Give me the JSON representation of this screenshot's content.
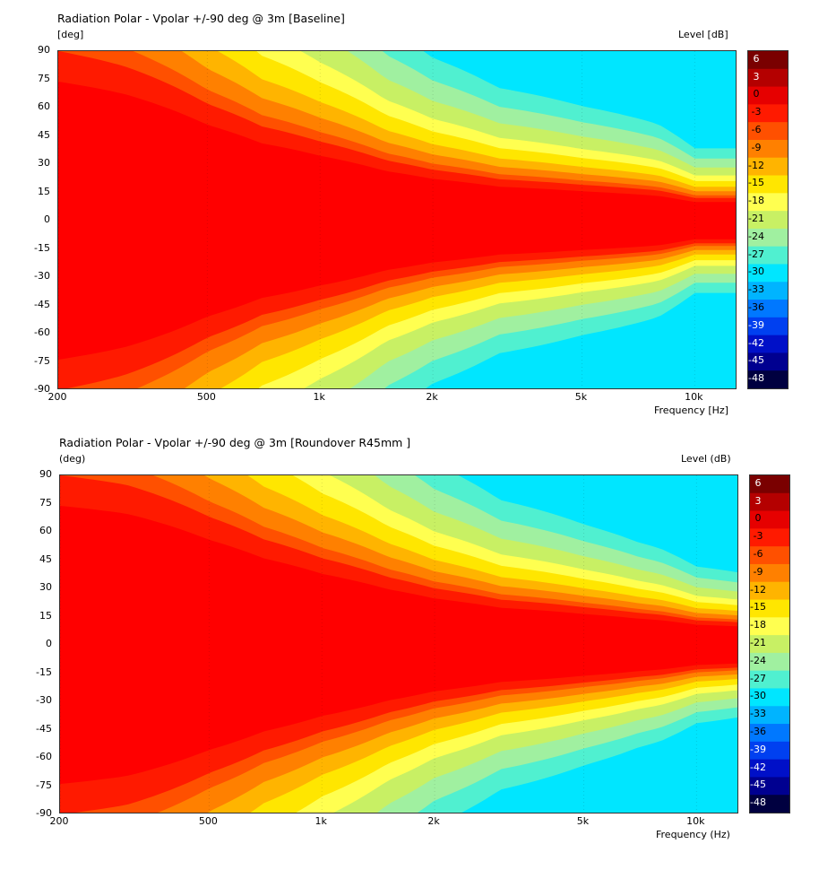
{
  "chart_data": [
    {
      "type": "heatmap",
      "title": "Radiation Polar - Vpolar +/-90 deg @ 3m [Baseline]",
      "ylabel": "[deg]",
      "xlabel": "Frequency  [Hz]",
      "colorbar_label": "Level  [dB]",
      "x_scale": "log",
      "xlim": [
        200,
        13000
      ],
      "ylim": [
        -90,
        90
      ],
      "x_ticks": [
        200,
        500,
        1000,
        2000,
        5000,
        10000
      ],
      "x_tick_labels": [
        "200",
        "500",
        "1k",
        "2k",
        "5k",
        "10k"
      ],
      "y_ticks": [
        90,
        75,
        60,
        45,
        30,
        15,
        0,
        -15,
        -30,
        -45,
        -60,
        -75,
        -90
      ],
      "colorbar_levels": [
        6,
        3,
        0,
        -3,
        -6,
        -9,
        -12,
        -15,
        -18,
        -21,
        -24,
        -27,
        -30,
        -33,
        -36,
        -39,
        -42,
        -45,
        -48
      ],
      "beamwidth_6db_deg": {
        "frequency_hz": [
          200,
          300,
          500,
          700,
          1000,
          1500,
          2000,
          3000,
          5000,
          7000,
          8000,
          10000,
          13000
        ],
        "half_angle_deg": [
          90,
          82,
          62,
          50,
          42,
          32,
          27,
          22,
          19,
          17,
          16,
          12,
          12
        ]
      }
    },
    {
      "type": "heatmap",
      "title": "Radiation Polar - Vpolar +/-90 deg @ 3m [Roundover R45mm ]",
      "ylabel": "(deg)",
      "xlabel": "Frequency  (Hz)",
      "colorbar_label": "Level  (dB)",
      "x_scale": "log",
      "xlim": [
        200,
        13000
      ],
      "ylim": [
        -90,
        90
      ],
      "x_ticks": [
        200,
        500,
        1000,
        2000,
        5000,
        10000
      ],
      "x_tick_labels": [
        "200",
        "500",
        "1k",
        "2k",
        "5k",
        "10k"
      ],
      "y_ticks": [
        90,
        75,
        60,
        45,
        30,
        15,
        0,
        -15,
        -30,
        -45,
        -60,
        -75,
        -90
      ],
      "colorbar_levels": [
        6,
        3,
        0,
        -3,
        -6,
        -9,
        -12,
        -15,
        -18,
        -21,
        -24,
        -27,
        -30,
        -33,
        -36,
        -39,
        -42,
        -45,
        -48
      ],
      "beamwidth_6db_deg": {
        "frequency_hz": [
          200,
          300,
          500,
          700,
          1000,
          1500,
          2000,
          3000,
          5000,
          7000,
          8000,
          10000,
          13000
        ],
        "half_angle_deg": [
          90,
          85,
          68,
          56,
          46,
          36,
          30,
          24,
          20,
          17,
          16,
          13,
          12
        ]
      }
    }
  ],
  "colors": {
    "6": "#7a0000",
    "3": "#b40000",
    "0": "#e60000",
    "-3": "#ff1a00",
    "-6": "#ff5000",
    "-9": "#ff8000",
    "-12": "#ffb400",
    "-15": "#ffe600",
    "-18": "#ffff50",
    "-21": "#c8f064",
    "-24": "#a0f0a0",
    "-27": "#50f0d0",
    "-30": "#00e6ff",
    "-33": "#00b4ff",
    "-36": "#0078ff",
    "-39": "#0040f0",
    "-42": "#0010c8",
    "-45": "#000090",
    "-48": "#000040",
    "core": "#ff0000"
  }
}
